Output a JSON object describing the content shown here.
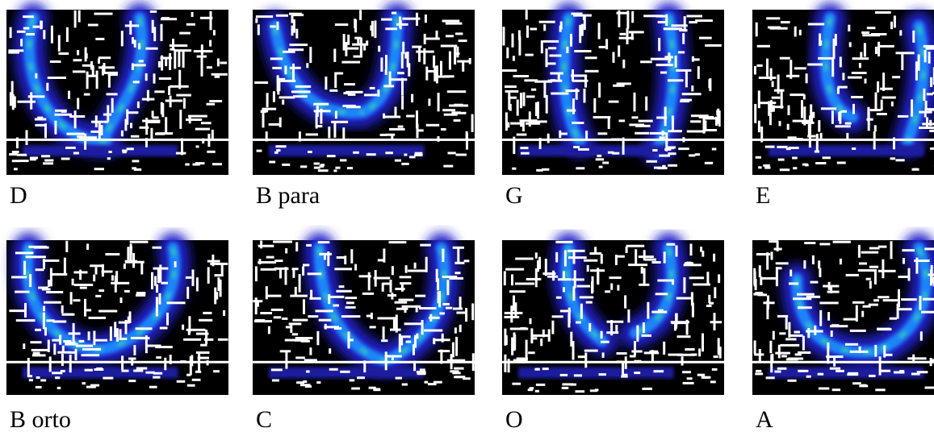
{
  "panels": [
    {
      "label": "D"
    },
    {
      "label": "B para"
    },
    {
      "label": "G"
    },
    {
      "label": "E"
    },
    {
      "label": "B orto"
    },
    {
      "label": "C"
    },
    {
      "label": "O"
    },
    {
      "label": "A"
    }
  ]
}
